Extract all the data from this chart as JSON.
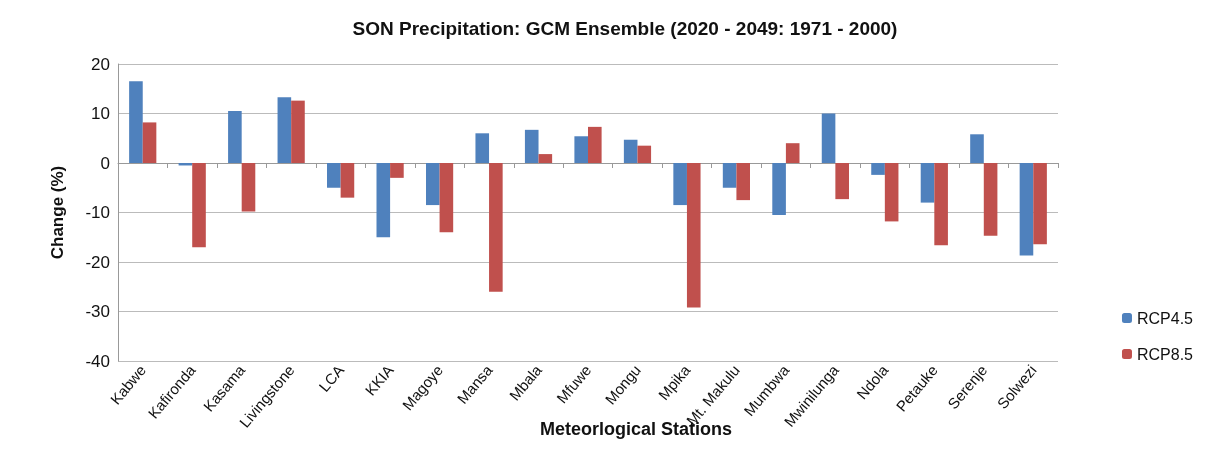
{
  "chart_data": {
    "type": "bar",
    "title": "SON Precipitation: GCM Ensemble (2020 - 2049: 1971 - 2000)",
    "xlabel": "Meteorlogical Stations",
    "ylabel": "Change (%)",
    "categories": [
      "Kabwe",
      "Kafironda",
      "Kasama",
      "Livingstone",
      "LCA",
      "KKIA",
      "Magoye",
      "Mansa",
      "Mbala",
      "Mfuwe",
      "Mongu",
      "Mpika",
      "Mt. Makulu",
      "Mumbwa",
      "Mwinilunga",
      "Ndola",
      "Petauke",
      "Serenje",
      "Solwezi"
    ],
    "series": [
      {
        "name": "RCP4.5",
        "color": "#4f81bd",
        "values": [
          16.5,
          -0.5,
          10.5,
          13.3,
          -5,
          -15,
          -8.5,
          6,
          6.7,
          5.4,
          4.7,
          -8.5,
          -5,
          -10.5,
          10,
          -2.4,
          -8,
          5.8,
          -18.7
        ]
      },
      {
        "name": "RCP8.5",
        "color": "#c0504d",
        "values": [
          8.2,
          -17,
          -9.8,
          12.6,
          -7,
          -3,
          -14,
          -26,
          1.8,
          7.3,
          3.5,
          -29.2,
          -7.5,
          4,
          -7.3,
          -11.8,
          -16.6,
          -14.7,
          -16.4
        ]
      }
    ],
    "ylim": [
      -40,
      20
    ],
    "yticks": [
      -40,
      -30,
      -20,
      -10,
      0,
      10,
      20
    ],
    "grid": "y",
    "legend": "right"
  }
}
